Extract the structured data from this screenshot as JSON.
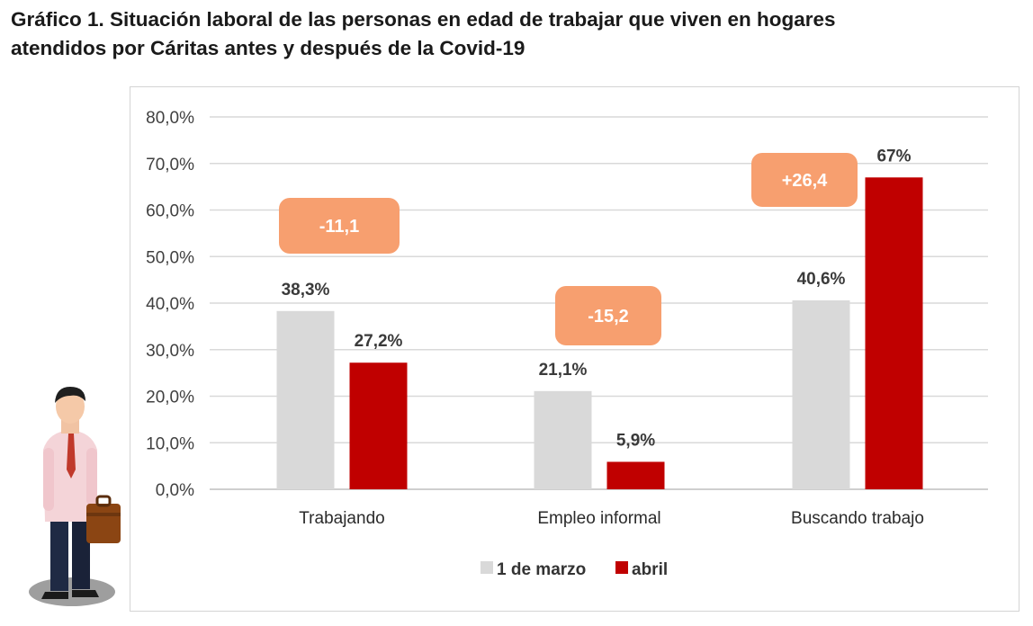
{
  "title_lines": [
    "Gráfico 1. Situación laboral de las personas en edad de trabajar que viven en hogares",
    "atendidos por Cáritas antes y después de la Covid-19"
  ],
  "chart_data": {
    "type": "bar",
    "categories": [
      "Trabajando",
      "Empleo informal",
      "Buscando trabajo"
    ],
    "series": [
      {
        "name": "1 de marzo",
        "values": [
          38.3,
          21.1,
          40.6
        ],
        "labels": [
          "38,3%",
          "21,1%",
          "40,6%"
        ],
        "color": "#d9d9d9"
      },
      {
        "name": "abril",
        "values": [
          27.2,
          5.9,
          67.0
        ],
        "labels": [
          "27,2%",
          "5,9%",
          "67%"
        ],
        "color": "#c00000"
      }
    ],
    "ylim": [
      0,
      80
    ],
    "yticks": [
      0,
      10,
      20,
      30,
      40,
      50,
      60,
      70,
      80
    ],
    "ytick_labels": [
      "0,0%",
      "10,0%",
      "20,0%",
      "30,0%",
      "40,0%",
      "50,0%",
      "60,0%",
      "70,0%",
      "80,0%"
    ],
    "annotations": [
      "-11,1",
      "-15,2",
      "+26,4"
    ],
    "annotation_color": "#f79f6f",
    "grid": true,
    "legend": "bottom"
  }
}
